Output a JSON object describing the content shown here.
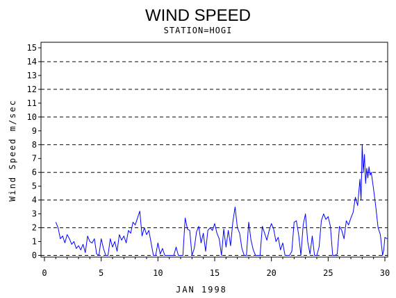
{
  "chart_data": {
    "type": "line",
    "title": "WIND SPEED",
    "subtitle": "STATION=HOGI",
    "xlabel": "JAN 1998",
    "ylabel": "Wind Speed m/sec",
    "xlim": [
      0,
      30
    ],
    "ylim": [
      0,
      15
    ],
    "x_ticks": [
      "0",
      "5",
      "10",
      "15",
      "20",
      "25",
      "30"
    ],
    "x_tick_values": [
      0,
      5,
      10,
      15,
      20,
      25,
      30
    ],
    "y_ticks": [
      "0",
      "1",
      "2",
      "3",
      "4",
      "5",
      "6",
      "7",
      "8",
      "9",
      "10",
      "11",
      "12",
      "13",
      "14",
      "15"
    ],
    "y_tick_values": [
      0,
      1,
      2,
      3,
      4,
      5,
      6,
      7,
      8,
      9,
      10,
      11,
      12,
      13,
      14,
      15
    ],
    "dashed_gridlines_y": [
      0,
      2,
      4,
      6,
      8,
      10,
      12,
      14
    ],
    "series": [
      {
        "color": "#0000ff",
        "points": [
          [
            1.0,
            2.4
          ],
          [
            1.2,
            2.0
          ],
          [
            1.4,
            1.2
          ],
          [
            1.6,
            1.4
          ],
          [
            1.8,
            0.9
          ],
          [
            2.0,
            1.5
          ],
          [
            2.2,
            1.2
          ],
          [
            2.4,
            0.8
          ],
          [
            2.6,
            1.0
          ],
          [
            2.8,
            0.5
          ],
          [
            3.0,
            0.7
          ],
          [
            3.2,
            0.4
          ],
          [
            3.4,
            0.8
          ],
          [
            3.6,
            0.2
          ],
          [
            3.8,
            1.4
          ],
          [
            4.0,
            1.0
          ],
          [
            4.2,
            0.9
          ],
          [
            4.4,
            1.2
          ],
          [
            4.6,
            0.1
          ],
          [
            4.8,
            0.0
          ],
          [
            5.0,
            1.2
          ],
          [
            5.2,
            0.5
          ],
          [
            5.4,
            0.0
          ],
          [
            5.6,
            0.0
          ],
          [
            5.8,
            1.2
          ],
          [
            6.0,
            0.6
          ],
          [
            6.2,
            1.0
          ],
          [
            6.4,
            0.3
          ],
          [
            6.6,
            1.5
          ],
          [
            6.8,
            1.1
          ],
          [
            7.0,
            1.4
          ],
          [
            7.2,
            0.9
          ],
          [
            7.4,
            1.8
          ],
          [
            7.6,
            1.6
          ],
          [
            7.8,
            2.4
          ],
          [
            8.0,
            2.2
          ],
          [
            8.2,
            2.7
          ],
          [
            8.4,
            3.2
          ],
          [
            8.6,
            1.4
          ],
          [
            8.8,
            2.0
          ],
          [
            9.0,
            1.5
          ],
          [
            9.2,
            1.8
          ],
          [
            9.4,
            0.9
          ],
          [
            9.6,
            0.0
          ],
          [
            9.8,
            0.0
          ],
          [
            10.0,
            0.9
          ],
          [
            10.2,
            0.1
          ],
          [
            10.4,
            0.5
          ],
          [
            10.6,
            0.0
          ],
          [
            10.8,
            0.0
          ],
          [
            11.0,
            0.0
          ],
          [
            11.2,
            0.0
          ],
          [
            11.4,
            0.0
          ],
          [
            11.6,
            0.6
          ],
          [
            11.8,
            0.0
          ],
          [
            12.0,
            0.0
          ],
          [
            12.2,
            0.0
          ],
          [
            12.4,
            2.7
          ],
          [
            12.6,
            1.9
          ],
          [
            12.8,
            1.8
          ],
          [
            13.0,
            0.0
          ],
          [
            13.2,
            0.5
          ],
          [
            13.4,
            1.7
          ],
          [
            13.6,
            2.1
          ],
          [
            13.8,
            0.9
          ],
          [
            14.0,
            1.6
          ],
          [
            14.2,
            0.3
          ],
          [
            14.4,
            1.8
          ],
          [
            14.6,
            2.0
          ],
          [
            14.8,
            1.8
          ],
          [
            15.0,
            2.3
          ],
          [
            15.2,
            1.6
          ],
          [
            15.4,
            1.2
          ],
          [
            15.6,
            0.0
          ],
          [
            15.8,
            1.9
          ],
          [
            16.0,
            0.6
          ],
          [
            16.2,
            1.8
          ],
          [
            16.4,
            0.7
          ],
          [
            16.6,
            2.4
          ],
          [
            16.8,
            3.5
          ],
          [
            17.0,
            2.0
          ],
          [
            17.2,
            1.6
          ],
          [
            17.4,
            0.5
          ],
          [
            17.6,
            0.0
          ],
          [
            17.8,
            0.0
          ],
          [
            18.0,
            2.4
          ],
          [
            18.2,
            1.1
          ],
          [
            18.4,
            0.4
          ],
          [
            18.6,
            0.0
          ],
          [
            18.8,
            0.0
          ],
          [
            19.0,
            0.0
          ],
          [
            19.2,
            2.1
          ],
          [
            19.4,
            1.6
          ],
          [
            19.6,
            1.1
          ],
          [
            19.8,
            1.8
          ],
          [
            20.0,
            2.3
          ],
          [
            20.2,
            1.9
          ],
          [
            20.4,
            1.0
          ],
          [
            20.6,
            1.3
          ],
          [
            20.8,
            0.4
          ],
          [
            21.0,
            0.9
          ],
          [
            21.2,
            0.0
          ],
          [
            21.4,
            0.0
          ],
          [
            21.6,
            0.0
          ],
          [
            21.8,
            0.3
          ],
          [
            22.0,
            2.4
          ],
          [
            22.2,
            2.5
          ],
          [
            22.4,
            1.5
          ],
          [
            22.6,
            0.0
          ],
          [
            22.8,
            2.2
          ],
          [
            23.0,
            3.0
          ],
          [
            23.2,
            1.0
          ],
          [
            23.4,
            0.1
          ],
          [
            23.6,
            1.4
          ],
          [
            23.8,
            0.0
          ],
          [
            24.0,
            0.0
          ],
          [
            24.2,
            0.6
          ],
          [
            24.4,
            2.5
          ],
          [
            24.6,
            3.0
          ],
          [
            24.8,
            2.6
          ],
          [
            25.0,
            2.8
          ],
          [
            25.2,
            2.1
          ],
          [
            25.4,
            0.0
          ],
          [
            25.6,
            0.0
          ],
          [
            25.8,
            0.1
          ],
          [
            26.0,
            2.1
          ],
          [
            26.2,
            1.8
          ],
          [
            26.4,
            1.2
          ],
          [
            26.6,
            2.5
          ],
          [
            26.8,
            2.2
          ],
          [
            27.0,
            2.7
          ],
          [
            27.2,
            3.1
          ],
          [
            27.4,
            4.2
          ],
          [
            27.6,
            3.6
          ],
          [
            27.8,
            5.5
          ],
          [
            27.9,
            4.0
          ],
          [
            28.0,
            8.0
          ],
          [
            28.1,
            6.0
          ],
          [
            28.2,
            7.3
          ],
          [
            28.3,
            5.2
          ],
          [
            28.4,
            6.3
          ],
          [
            28.5,
            5.6
          ],
          [
            28.6,
            6.4
          ],
          [
            28.7,
            5.8
          ],
          [
            28.8,
            6.0
          ],
          [
            28.9,
            5.4
          ],
          [
            29.0,
            4.8
          ],
          [
            29.2,
            3.5
          ],
          [
            29.4,
            2.0
          ],
          [
            29.6,
            1.5
          ],
          [
            29.8,
            0.0
          ],
          [
            29.9,
            0.4
          ],
          [
            30.0,
            1.3
          ],
          [
            30.2,
            1.2
          ]
        ]
      }
    ]
  }
}
